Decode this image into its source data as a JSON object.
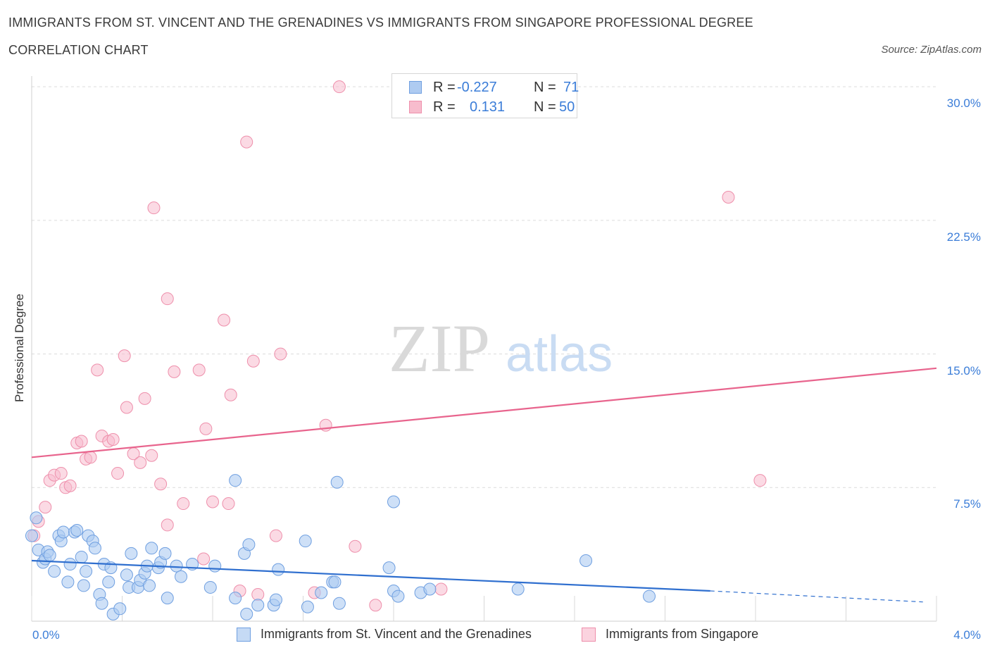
{
  "header": {
    "title_line1": "IMMIGRANTS FROM ST. VINCENT AND THE GRENADINES VS IMMIGRANTS FROM SINGAPORE PROFESSIONAL DEGREE",
    "title_line2": "CORRELATION CHART",
    "source": "Source: ZipAtlas.com"
  },
  "watermark": {
    "zip": "ZIP",
    "atlas": "atlas"
  },
  "legend": {
    "rows": [
      {
        "r_label": "R =",
        "r_value": "-0.227",
        "n_label": "N =",
        "n_value": "71"
      },
      {
        "r_label": "R =",
        "r_value": "0.131",
        "n_label": "N =",
        "n_value": "50"
      }
    ]
  },
  "colors": {
    "blue_fill": "#aecbf1",
    "blue_stroke": "#6f9fe0",
    "blue_line": "#2f6fcf",
    "pink_fill": "#f7bccd",
    "pink_stroke": "#ee8fab",
    "pink_line": "#e8648d",
    "tick_text": "#3b7dd8",
    "grid": "#dcdcdc"
  },
  "chart_data": {
    "type": "scatter",
    "title": "IMMIGRANTS FROM ST. VINCENT AND THE GRENADINES VS IMMIGRANTS FROM SINGAPORE PROFESSIONAL DEGREE CORRELATION CHART",
    "xlabel": "",
    "ylabel": "Professional Degree",
    "xlim": [
      0,
      4.0
    ],
    "ylim": [
      0,
      30.6
    ],
    "x_tick_labels": [
      "0.0%",
      "4.0%"
    ],
    "y_ticks": [
      7.5,
      15.0,
      22.5,
      30.0
    ],
    "y_tick_labels": [
      "7.5%",
      "15.0%",
      "22.5%",
      "30.0%"
    ],
    "grid": "horizontal dashed",
    "legend_position": "bottom",
    "series": [
      {
        "name": "Immigrants from St. Vincent and the Grenadines",
        "color": "blue",
        "r": -0.227,
        "n": 71,
        "trend": {
          "x0": 0.0,
          "y0": 3.4,
          "x1": 3.0,
          "y1": 1.7,
          "dashed_to_x": 3.94,
          "dashed_to_y": 1.08
        },
        "points": [
          [
            0.02,
            5.8
          ],
          [
            0.03,
            4.0
          ],
          [
            0.05,
            3.3
          ],
          [
            0.06,
            3.5
          ],
          [
            0.07,
            3.9
          ],
          [
            0.08,
            3.7
          ],
          [
            0.1,
            2.8
          ],
          [
            0.12,
            4.8
          ],
          [
            0.13,
            4.5
          ],
          [
            0.14,
            5.0
          ],
          [
            0.16,
            2.2
          ],
          [
            0.17,
            3.2
          ],
          [
            0.19,
            5.0
          ],
          [
            0.2,
            5.1
          ],
          [
            0.22,
            3.6
          ],
          [
            0.23,
            2.0
          ],
          [
            0.24,
            2.8
          ],
          [
            0.25,
            4.8
          ],
          [
            0.27,
            4.5
          ],
          [
            0.28,
            4.1
          ],
          [
            0.3,
            1.5
          ],
          [
            0.31,
            1.0
          ],
          [
            0.32,
            3.2
          ],
          [
            0.34,
            2.2
          ],
          [
            0.35,
            3.0
          ],
          [
            0.36,
            0.4
          ],
          [
            0.39,
            0.7
          ],
          [
            0.42,
            2.6
          ],
          [
            0.43,
            1.9
          ],
          [
            0.44,
            3.8
          ],
          [
            0.47,
            1.9
          ],
          [
            0.48,
            2.3
          ],
          [
            0.5,
            2.7
          ],
          [
            0.51,
            3.1
          ],
          [
            0.52,
            2.0
          ],
          [
            0.53,
            4.1
          ],
          [
            0.56,
            3.0
          ],
          [
            0.57,
            3.3
          ],
          [
            0.59,
            3.8
          ],
          [
            0.6,
            1.3
          ],
          [
            0.64,
            3.1
          ],
          [
            0.66,
            2.5
          ],
          [
            0.71,
            3.2
          ],
          [
            0.79,
            1.9
          ],
          [
            0.81,
            3.1
          ],
          [
            0.9,
            1.3
          ],
          [
            0.9,
            7.9
          ],
          [
            0.94,
            3.8
          ],
          [
            0.96,
            4.3
          ],
          [
            0.95,
            0.4
          ],
          [
            1.0,
            0.9
          ],
          [
            1.07,
            0.9
          ],
          [
            1.08,
            1.2
          ],
          [
            1.09,
            2.9
          ],
          [
            1.21,
            4.5
          ],
          [
            1.22,
            0.8
          ],
          [
            1.28,
            1.6
          ],
          [
            1.33,
            2.2
          ],
          [
            1.34,
            2.2
          ],
          [
            1.35,
            7.8
          ],
          [
            1.36,
            1.0
          ],
          [
            1.58,
            3.0
          ],
          [
            1.6,
            1.7
          ],
          [
            1.62,
            1.4
          ],
          [
            1.6,
            6.7
          ],
          [
            1.72,
            1.6
          ],
          [
            1.76,
            1.8
          ],
          [
            2.15,
            1.8
          ],
          [
            2.45,
            3.4
          ],
          [
            2.73,
            1.4
          ],
          [
            0.0,
            4.8
          ]
        ]
      },
      {
        "name": "Immigrants from Singapore",
        "color": "pink",
        "r": 0.131,
        "n": 50,
        "trend": {
          "x0": 0.0,
          "y0": 9.2,
          "x1": 4.0,
          "y1": 14.2
        },
        "points": [
          [
            0.01,
            4.8
          ],
          [
            0.03,
            5.6
          ],
          [
            0.06,
            6.4
          ],
          [
            0.08,
            7.9
          ],
          [
            0.1,
            8.2
          ],
          [
            0.13,
            8.3
          ],
          [
            0.15,
            7.5
          ],
          [
            0.17,
            7.6
          ],
          [
            0.2,
            10.0
          ],
          [
            0.22,
            10.1
          ],
          [
            0.24,
            9.1
          ],
          [
            0.26,
            9.2
          ],
          [
            0.29,
            14.1
          ],
          [
            0.31,
            10.4
          ],
          [
            0.34,
            10.1
          ],
          [
            0.36,
            10.2
          ],
          [
            0.38,
            8.3
          ],
          [
            0.41,
            14.9
          ],
          [
            0.42,
            12.0
          ],
          [
            0.45,
            9.4
          ],
          [
            0.48,
            8.9
          ],
          [
            0.5,
            12.5
          ],
          [
            0.53,
            9.3
          ],
          [
            0.54,
            23.2
          ],
          [
            0.57,
            7.7
          ],
          [
            0.6,
            18.1
          ],
          [
            0.6,
            5.4
          ],
          [
            0.63,
            14.0
          ],
          [
            0.67,
            6.6
          ],
          [
            0.74,
            14.1
          ],
          [
            0.76,
            3.5
          ],
          [
            0.77,
            10.8
          ],
          [
            0.8,
            6.7
          ],
          [
            0.85,
            16.9
          ],
          [
            0.87,
            6.6
          ],
          [
            0.88,
            12.7
          ],
          [
            0.92,
            1.7
          ],
          [
            0.95,
            26.9
          ],
          [
            0.98,
            14.6
          ],
          [
            1.0,
            1.5
          ],
          [
            1.08,
            4.8
          ],
          [
            1.1,
            15.0
          ],
          [
            1.25,
            1.6
          ],
          [
            1.3,
            11.0
          ],
          [
            1.36,
            30.0
          ],
          [
            1.43,
            4.2
          ],
          [
            1.52,
            0.9
          ],
          [
            1.81,
            1.8
          ],
          [
            3.08,
            23.8
          ],
          [
            3.22,
            7.9
          ]
        ]
      }
    ]
  },
  "bottom_legend": {
    "items": [
      {
        "label": "Immigrants from St. Vincent and the Grenadines"
      },
      {
        "label": "Immigrants from Singapore"
      }
    ]
  }
}
